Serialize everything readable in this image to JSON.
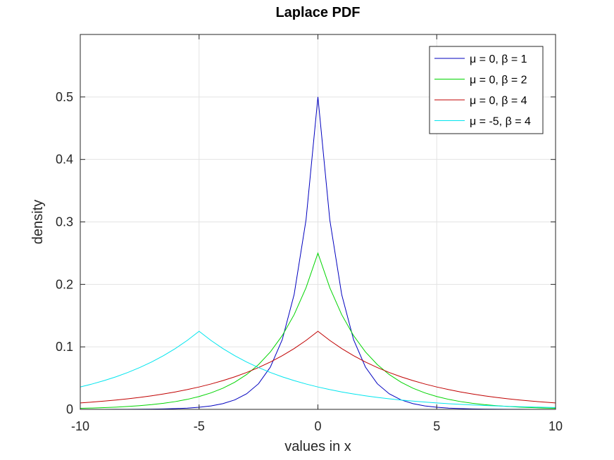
{
  "chart_data": {
    "type": "line",
    "title": "Laplace PDF",
    "xlabel": "values in x",
    "ylabel": "density",
    "xlim": [
      -10,
      10
    ],
    "ylim": [
      0,
      0.6
    ],
    "xticks": [
      -10,
      -5,
      0,
      5,
      10
    ],
    "yticks": [
      0,
      0.1,
      0.2,
      0.3,
      0.4,
      0.5
    ],
    "xtick_labels": [
      "-10",
      "-5",
      "0",
      "5",
      "10"
    ],
    "ytick_labels": [
      "0",
      "0.1",
      "0.2",
      "0.3",
      "0.4",
      "0.5"
    ],
    "grid": true,
    "legend_position": "top-right",
    "x": [
      -10,
      -9.5,
      -9,
      -8.5,
      -8,
      -7.5,
      -7,
      -6.5,
      -6,
      -5.5,
      -5,
      -4.5,
      -4,
      -3.5,
      -3,
      -2.5,
      -2,
      -1.5,
      -1,
      -0.5,
      0,
      0.5,
      1,
      1.5,
      2,
      2.5,
      3,
      3.5,
      4,
      4.5,
      5,
      5.5,
      6,
      6.5,
      7,
      7.5,
      8,
      8.5,
      9,
      9.5,
      10
    ],
    "series": [
      {
        "name": "μ = 0, β = 1",
        "color": "#0000bf",
        "values": [
          2e-05,
          4e-05,
          6e-05,
          0.0001,
          0.00017,
          0.00028,
          0.00046,
          0.00075,
          0.00124,
          0.00204,
          0.00337,
          0.00555,
          0.00916,
          0.0151,
          0.0249,
          0.041,
          0.0677,
          0.1116,
          0.1839,
          0.3033,
          0.5,
          0.3033,
          0.1839,
          0.1116,
          0.0677,
          0.041,
          0.0249,
          0.0151,
          0.00916,
          0.00555,
          0.00337,
          0.00204,
          0.00124,
          0.00075,
          0.00046,
          0.00028,
          0.00017,
          0.0001,
          6e-05,
          4e-05,
          2e-05
        ]
      },
      {
        "name": "μ = 0, β = 2",
        "color": "#00d400",
        "values": [
          0.00168,
          0.00216,
          0.00278,
          0.00357,
          0.00458,
          0.00588,
          0.00755,
          0.00969,
          0.01245,
          0.01598,
          0.02052,
          0.02635,
          0.03383,
          0.04344,
          0.05578,
          0.07163,
          0.09197,
          0.1181,
          0.1516,
          0.1947,
          0.25,
          0.1947,
          0.1516,
          0.1181,
          0.09197,
          0.07163,
          0.05578,
          0.04344,
          0.03383,
          0.02635,
          0.02052,
          0.01598,
          0.01245,
          0.00969,
          0.00755,
          0.00588,
          0.00458,
          0.00357,
          0.00278,
          0.00216,
          0.00168
        ]
      },
      {
        "name": "μ = 0, β = 4",
        "color": "#c00000",
        "values": [
          0.01026,
          0.01163,
          0.01318,
          0.01494,
          0.01692,
          0.01917,
          0.02172,
          0.02462,
          0.0279,
          0.03161,
          0.03581,
          0.04058,
          0.04598,
          0.0521,
          0.05904,
          0.0669,
          0.0758,
          0.08589,
          0.09735,
          0.1103,
          0.125,
          0.1103,
          0.09735,
          0.08589,
          0.0758,
          0.0669,
          0.05904,
          0.0521,
          0.04598,
          0.04058,
          0.03581,
          0.03161,
          0.0279,
          0.02462,
          0.02172,
          0.01917,
          0.01692,
          0.01494,
          0.01318,
          0.01163,
          0.01026
        ]
      },
      {
        "name": "μ = -5, β = 4",
        "color": "#00e5ee",
        "values": [
          0.03581,
          0.04058,
          0.04598,
          0.0521,
          0.05904,
          0.0669,
          0.0758,
          0.08589,
          0.09735,
          0.1103,
          0.125,
          0.1103,
          0.09735,
          0.08589,
          0.0758,
          0.0669,
          0.05904,
          0.0521,
          0.04598,
          0.04058,
          0.03581,
          0.03161,
          0.0279,
          0.02462,
          0.02172,
          0.01917,
          0.01692,
          0.01494,
          0.01318,
          0.01163,
          0.01026,
          0.00906,
          0.00799,
          0.00706,
          0.00622,
          0.00549,
          0.00485,
          0.00428,
          0.00377,
          0.00333,
          0.00294
        ]
      }
    ]
  }
}
